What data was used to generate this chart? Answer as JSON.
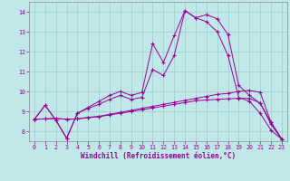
{
  "background_color": "#c0e8e8",
  "grid_color": "#a0cccc",
  "line_color": "#990099",
  "xlabel": "Windchill (Refroidissement éolien,°C)",
  "xlim": [
    -0.5,
    23.5
  ],
  "ylim": [
    7.5,
    14.5
  ],
  "yticks": [
    8,
    9,
    10,
    11,
    12,
    13,
    14
  ],
  "xticks": [
    0,
    1,
    2,
    3,
    4,
    5,
    6,
    7,
    8,
    9,
    10,
    11,
    12,
    13,
    14,
    15,
    16,
    17,
    18,
    19,
    20,
    21,
    22,
    23
  ],
  "line1_x": [
    0,
    1,
    2,
    3,
    4,
    5,
    6,
    7,
    8,
    9,
    10,
    11,
    12,
    13,
    14,
    15,
    16,
    17,
    18,
    19,
    20,
    21,
    22,
    23
  ],
  "line1_y": [
    8.6,
    9.3,
    8.55,
    7.65,
    8.9,
    9.2,
    9.5,
    9.8,
    10.0,
    9.8,
    9.95,
    12.4,
    11.45,
    12.8,
    14.05,
    13.7,
    13.85,
    13.65,
    12.85,
    10.3,
    9.8,
    9.4,
    8.45,
    7.6
  ],
  "line2_x": [
    0,
    1,
    2,
    3,
    4,
    5,
    6,
    7,
    8,
    9,
    10,
    11,
    12,
    13,
    14,
    15,
    16,
    17,
    18,
    19,
    20,
    21,
    22,
    23
  ],
  "line2_y": [
    8.6,
    9.3,
    8.55,
    7.65,
    8.9,
    9.15,
    9.35,
    9.6,
    9.8,
    9.6,
    9.7,
    11.1,
    10.8,
    11.8,
    14.05,
    13.7,
    13.5,
    13.0,
    11.8,
    9.7,
    9.5,
    8.9,
    8.05,
    7.6
  ],
  "line3_x": [
    0,
    1,
    2,
    3,
    4,
    5,
    6,
    7,
    8,
    9,
    10,
    11,
    12,
    13,
    14,
    15,
    16,
    17,
    18,
    19,
    20,
    21,
    22,
    23
  ],
  "line3_y": [
    8.6,
    8.62,
    8.64,
    8.6,
    8.62,
    8.7,
    8.75,
    8.85,
    8.95,
    9.05,
    9.15,
    9.25,
    9.35,
    9.45,
    9.55,
    9.65,
    9.75,
    9.85,
    9.9,
    10.0,
    10.05,
    9.95,
    8.45,
    7.6
  ],
  "line4_x": [
    0,
    1,
    2,
    3,
    4,
    5,
    6,
    7,
    8,
    9,
    10,
    11,
    12,
    13,
    14,
    15,
    16,
    17,
    18,
    19,
    20,
    21,
    22,
    23
  ],
  "line4_y": [
    8.6,
    8.62,
    8.64,
    8.6,
    8.62,
    8.68,
    8.73,
    8.82,
    8.9,
    8.99,
    9.08,
    9.17,
    9.26,
    9.35,
    9.44,
    9.53,
    9.57,
    9.6,
    9.63,
    9.65,
    9.65,
    9.42,
    8.35,
    7.6
  ]
}
